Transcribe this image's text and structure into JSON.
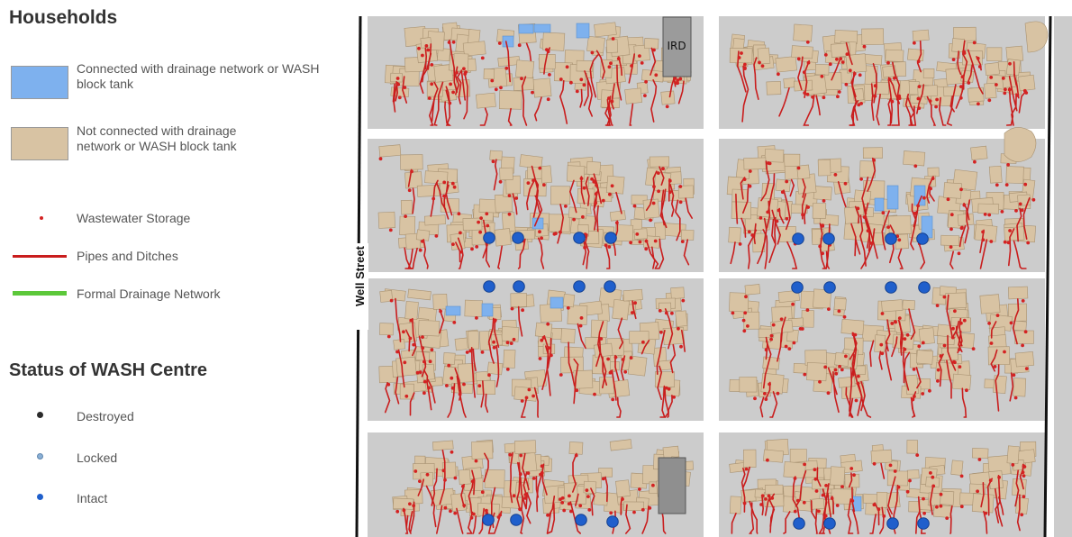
{
  "legend": {
    "households_title": "Households",
    "connected_label": "Connected with drainage network or WASH block tank",
    "not_connected_label": "Not connected with drainage network or WASH block tank",
    "wastewater_label": "Wastewater Storage",
    "pipes_label": "Pipes and Ditches",
    "formal_label": "Formal Drainage Network",
    "status_title": "Status of WASH Centre",
    "destroyed_label": "Destroyed",
    "locked_label": "Locked",
    "intact_label": "Intact"
  },
  "map": {
    "street_label": "Well Street",
    "building_label": "IRD"
  },
  "colors": {
    "connected": "#7eb1ee",
    "not_connected": "#d8c3a3",
    "wastewater": "#d42222",
    "pipes": "#c91d1d",
    "formal": "#5cc83a",
    "destroyed": "#2b2b2b",
    "locked": "#8ab0d6",
    "intact": "#1f5fcc",
    "block": "#cccccc"
  }
}
